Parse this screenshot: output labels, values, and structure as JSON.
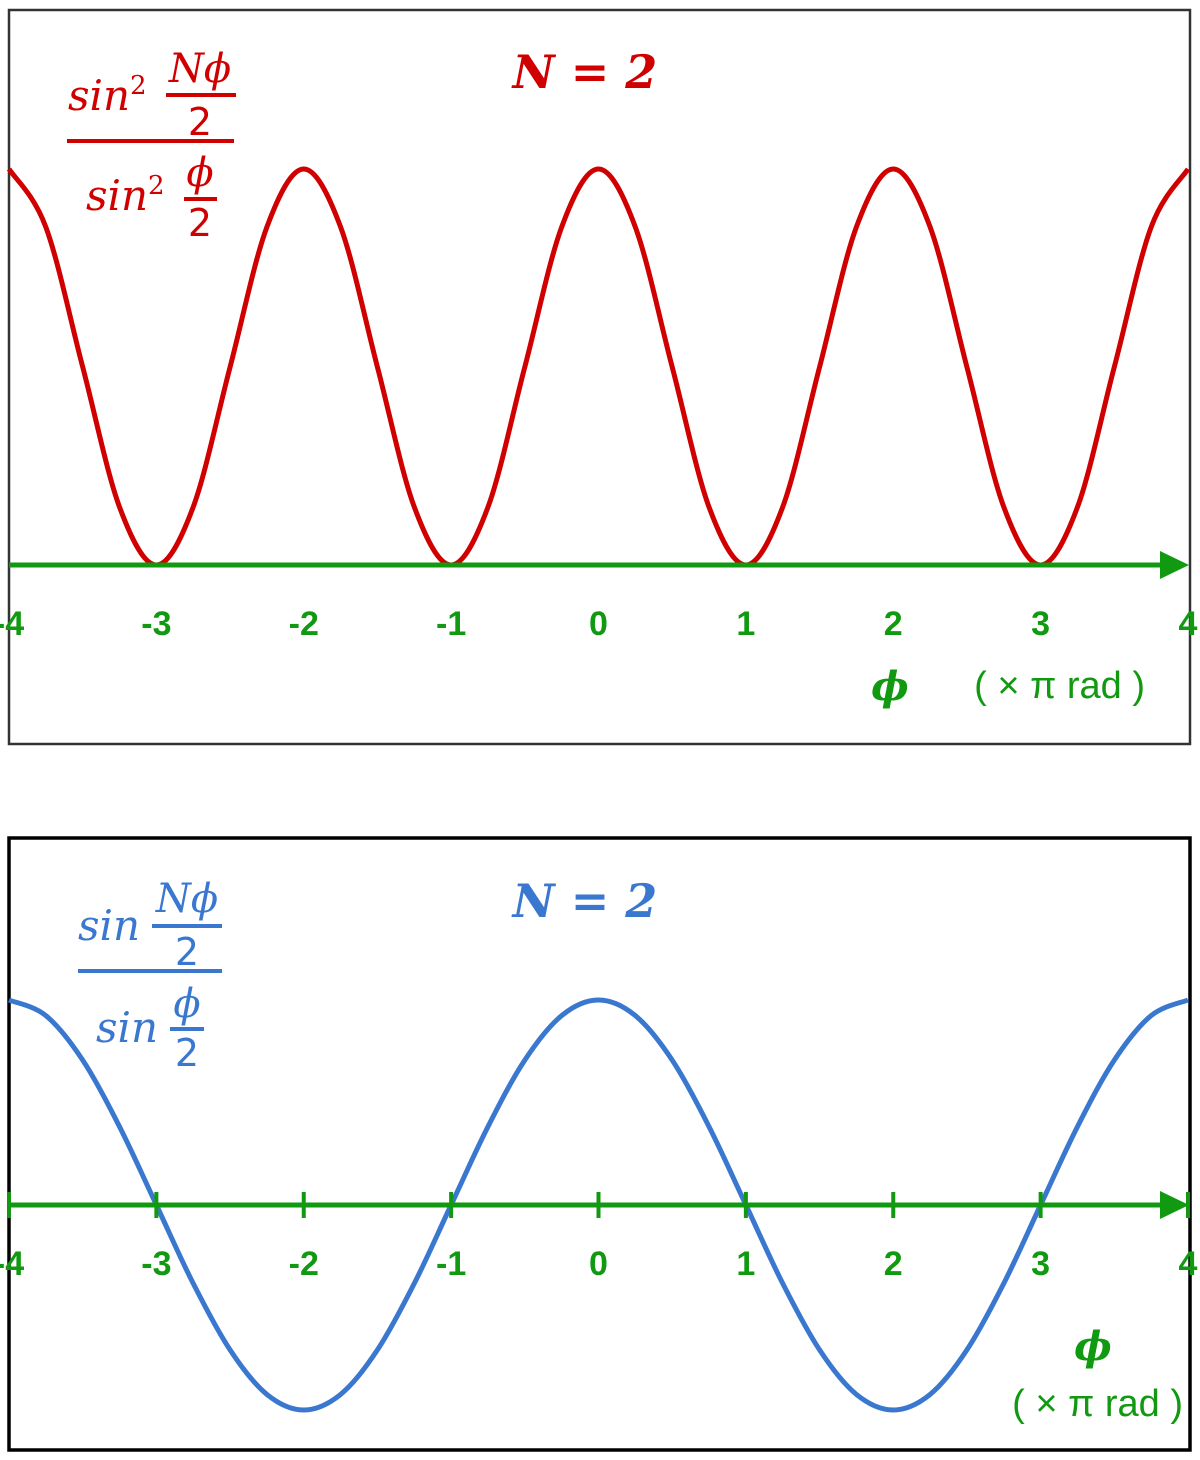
{
  "colors": {
    "red": "#d00000",
    "blue": "#3a78d0",
    "green": "#119a11",
    "frame": "#111111"
  },
  "chart_data": [
    {
      "type": "line",
      "title": "N = 2",
      "formula": {
        "num_func": "sin",
        "num_pow": "2",
        "num_top": "Nϕ",
        "num_bot": "2",
        "den_func": "sin",
        "den_pow": "2",
        "den_top": "ϕ",
        "den_bot": "2"
      },
      "xlabel": {
        "symbol": "ϕ",
        "unit": "( × π  rad )"
      },
      "xlim": [
        -4,
        4
      ],
      "ylim": [
        0,
        4
      ],
      "tick_labels": [
        "-4",
        "-3",
        "-2",
        "-1",
        "0",
        "1",
        "2",
        "3",
        "4"
      ],
      "tick_marks": false,
      "x": [
        -4,
        -3.75,
        -3.5,
        -3.25,
        -3,
        -2.75,
        -2.5,
        -2.25,
        -2,
        -1.75,
        -1.5,
        -1.25,
        -1,
        -0.75,
        -0.5,
        -0.25,
        0,
        0.25,
        0.5,
        0.75,
        1,
        1.25,
        1.5,
        1.75,
        2,
        2.25,
        2.5,
        2.75,
        3,
        3.25,
        3.5,
        3.75,
        4
      ],
      "y": [
        4,
        3.414,
        2,
        0.586,
        0,
        0.586,
        2,
        3.414,
        4,
        3.414,
        2,
        0.586,
        0,
        0.586,
        2,
        3.414,
        4,
        3.414,
        2,
        0.586,
        0,
        0.586,
        2,
        3.414,
        4,
        3.414,
        2,
        0.586,
        0,
        0.586,
        2,
        3.414,
        4
      ],
      "color": "#d00000"
    },
    {
      "type": "line",
      "title": "N = 2",
      "formula": {
        "num_func": "sin",
        "num_pow": "",
        "num_top": "Nϕ",
        "num_bot": "2",
        "den_func": "sin",
        "den_pow": "",
        "den_top": "ϕ",
        "den_bot": "2"
      },
      "xlabel": {
        "symbol": "ϕ",
        "unit": "( × π  rad )"
      },
      "xlim": [
        -4,
        4
      ],
      "ylim": [
        -2,
        2
      ],
      "tick_labels": [
        "-4",
        "-3",
        "-2",
        "-1",
        "0",
        "1",
        "2",
        "3",
        "4"
      ],
      "tick_marks": true,
      "x": [
        -4,
        -3.75,
        -3.5,
        -3.25,
        -3,
        -2.75,
        -2.5,
        -2.25,
        -2,
        -1.75,
        -1.5,
        -1.25,
        -1,
        -0.75,
        -0.5,
        -0.25,
        0,
        0.25,
        0.5,
        0.75,
        1,
        1.25,
        1.5,
        1.75,
        2,
        2.25,
        2.5,
        2.75,
        3,
        3.25,
        3.5,
        3.75,
        4
      ],
      "y": [
        2,
        1.848,
        1.414,
        0.765,
        0,
        -0.765,
        -1.414,
        -1.848,
        -2,
        -1.848,
        -1.414,
        -0.765,
        0,
        0.765,
        1.414,
        1.848,
        2,
        1.848,
        1.414,
        0.765,
        0,
        -0.765,
        -1.414,
        -1.848,
        -2,
        -1.848,
        -1.414,
        -0.765,
        0,
        0.765,
        1.414,
        1.848,
        2
      ],
      "color": "#3a78d0"
    }
  ]
}
